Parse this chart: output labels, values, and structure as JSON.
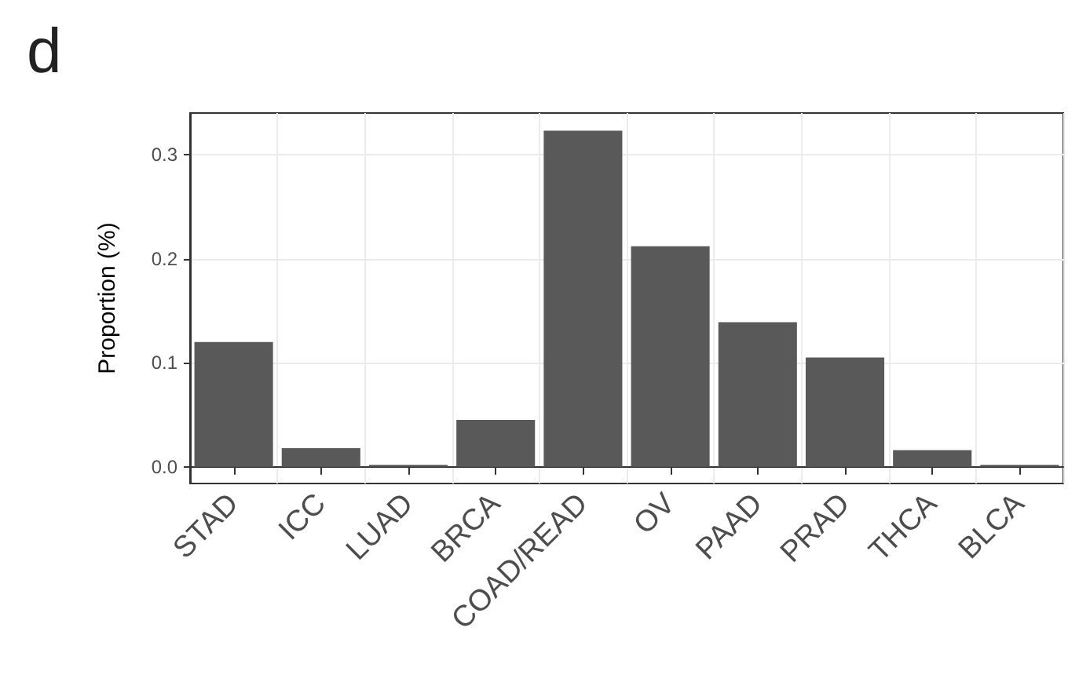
{
  "chart_data": {
    "type": "bar",
    "title": "d",
    "ylabel": "Proportion (%)",
    "categories": [
      "STAD",
      "ICC",
      "LUAD",
      "BRCA",
      "COAD/READ",
      "OV",
      "PAAD",
      "PRAD",
      "THCA",
      "BLCA"
    ],
    "values": [
      0.12,
      0.018,
      0.002,
      0.045,
      0.323,
      0.212,
      0.139,
      0.105,
      0.016,
      0.002
    ],
    "color": "#595959",
    "ylim": [
      -0.016,
      0.34
    ],
    "yticks": [
      {
        "value": 0,
        "label": "0.0"
      },
      {
        "value": 0.1,
        "label": "0.1"
      },
      {
        "value": 0.2,
        "label": "0.2"
      },
      {
        "value": 0.3,
        "label": "0.3"
      }
    ],
    "grid": true
  }
}
